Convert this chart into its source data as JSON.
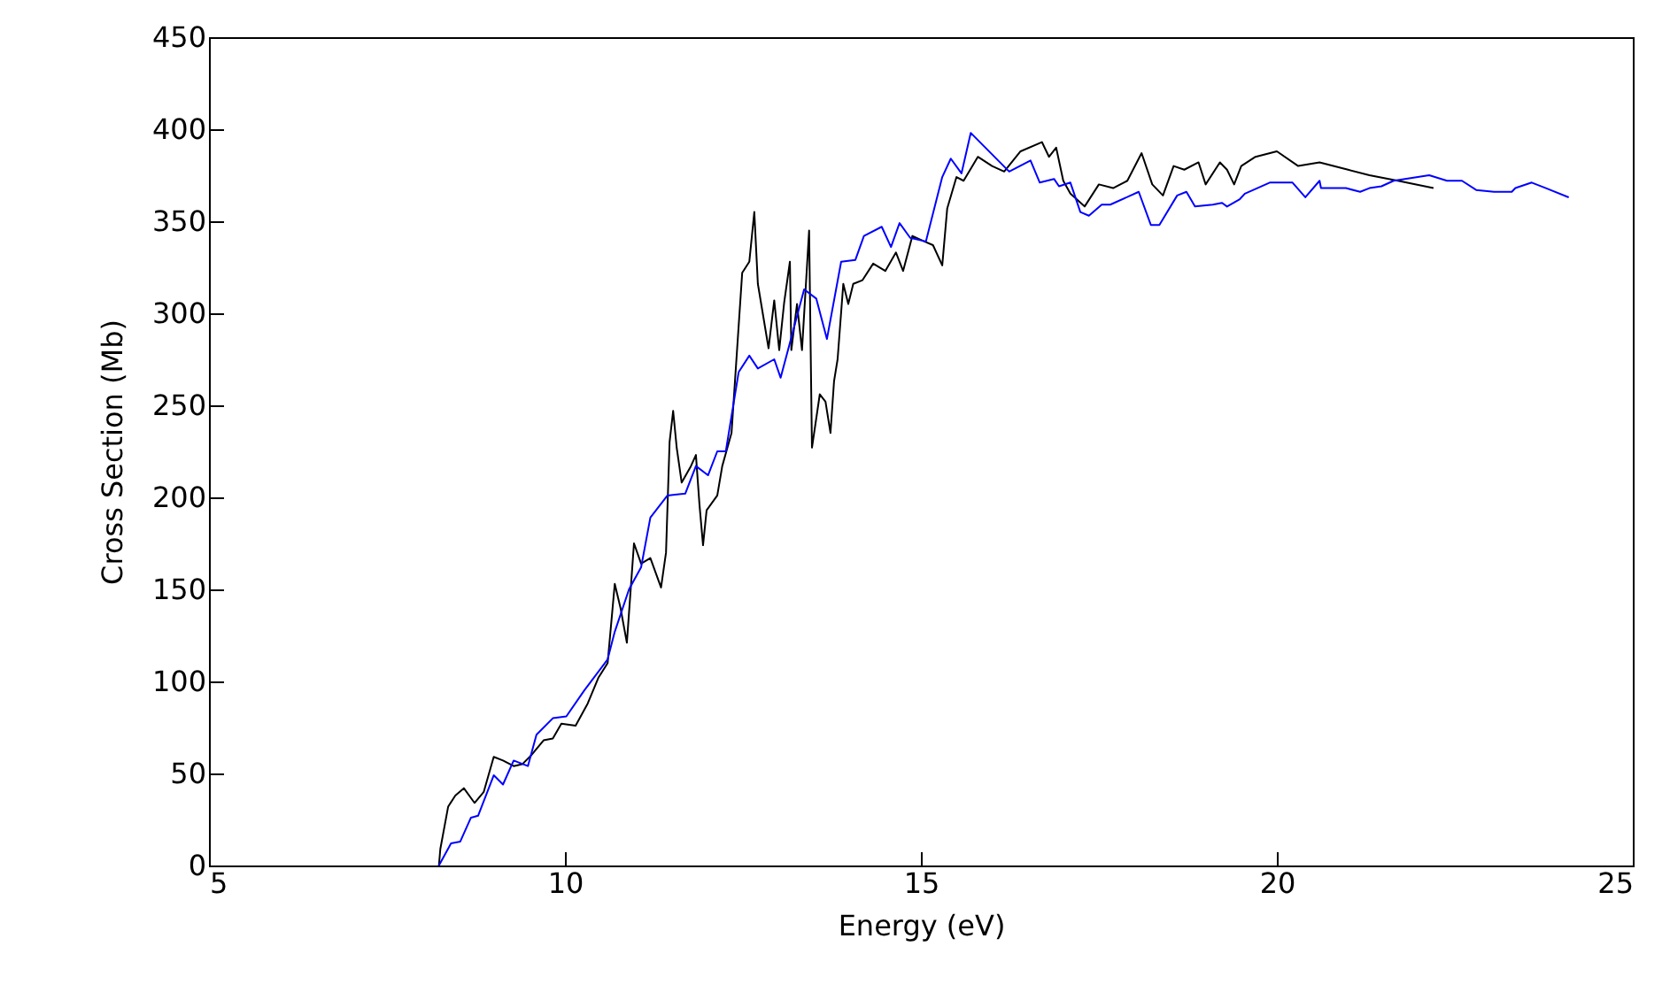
{
  "chart_data": {
    "type": "line",
    "xlabel": "Energy (eV)",
    "ylabel": "Cross Section (Mb)",
    "xlim": [
      5,
      25
    ],
    "ylim": [
      0,
      450
    ],
    "xticks": [
      5,
      10,
      15,
      20,
      25
    ],
    "yticks": [
      0,
      50,
      100,
      150,
      200,
      250,
      300,
      350,
      400,
      450
    ],
    "grid": false,
    "legend": false,
    "line_style": "solid",
    "marker": "none",
    "series": [
      {
        "color": "#000000",
        "x": [
          8.23,
          8.25,
          8.36,
          8.46,
          8.58,
          8.73,
          8.86,
          9.0,
          9.13,
          9.28,
          9.4,
          9.53,
          9.7,
          9.83,
          9.95,
          10.15,
          10.32,
          10.47,
          10.6,
          10.7,
          10.78,
          10.87,
          10.97,
          11.07,
          11.2,
          11.35,
          11.42,
          11.47,
          11.52,
          11.57,
          11.64,
          11.77,
          11.84,
          11.89,
          11.94,
          11.99,
          12.14,
          12.21,
          12.34,
          12.49,
          12.59,
          12.66,
          12.71,
          12.86,
          12.94,
          13.01,
          13.08,
          13.16,
          13.18,
          13.26,
          13.33,
          13.43,
          13.47,
          13.58,
          13.66,
          13.73,
          13.78,
          13.83,
          13.91,
          13.98,
          14.05,
          14.18,
          14.33,
          14.5,
          14.65,
          14.75,
          14.88,
          15.05,
          15.17,
          15.3,
          15.37,
          15.5,
          15.6,
          15.8,
          16.0,
          16.17,
          16.4,
          16.7,
          16.8,
          16.9,
          17.0,
          17.1,
          17.3,
          17.5,
          17.7,
          17.9,
          18.1,
          18.25,
          18.4,
          18.55,
          18.7,
          18.9,
          19.0,
          19.2,
          19.3,
          19.4,
          19.5,
          19.7,
          20.0,
          20.3,
          20.6,
          21.0,
          21.3,
          21.7,
          22.2
        ],
        "values": [
          0,
          9,
          32,
          38,
          42,
          34,
          40,
          59,
          57,
          54,
          55,
          60,
          68,
          69,
          77,
          76,
          88,
          102,
          110,
          153,
          140,
          121,
          175,
          164,
          167,
          151,
          170,
          230,
          247,
          227,
          208,
          217,
          223,
          196,
          174,
          193,
          201,
          217,
          235,
          322,
          328,
          355,
          316,
          281,
          307,
          280,
          306,
          328,
          280,
          305,
          280,
          345,
          227,
          256,
          252,
          235,
          263,
          275,
          316,
          305,
          316,
          318,
          327,
          323,
          333,
          323,
          342,
          339,
          337,
          326,
          357,
          374,
          372,
          385,
          380,
          377,
          388,
          393,
          385,
          390,
          372,
          365,
          358,
          370,
          368,
          372,
          387,
          370,
          364,
          380,
          378,
          382,
          370,
          382,
          378,
          370,
          380,
          385,
          388,
          380,
          382,
          378,
          375,
          372,
          368
        ]
      },
      {
        "color": "#0000ff",
        "x": [
          8.23,
          8.4,
          8.53,
          8.68,
          8.78,
          9.0,
          9.13,
          9.28,
          9.48,
          9.6,
          9.83,
          10.02,
          10.27,
          10.6,
          10.7,
          10.9,
          11.07,
          11.2,
          11.44,
          11.69,
          11.84,
          12.01,
          12.14,
          12.26,
          12.44,
          12.59,
          12.71,
          12.94,
          13.03,
          13.36,
          13.53,
          13.68,
          13.88,
          14.08,
          14.2,
          14.45,
          14.58,
          14.7,
          14.85,
          15.07,
          15.3,
          15.42,
          15.57,
          15.7,
          16.24,
          16.54,
          16.67,
          16.87,
          16.94,
          17.1,
          17.24,
          17.36,
          17.54,
          17.66,
          18.06,
          18.23,
          18.35,
          18.6,
          18.73,
          18.85,
          19.1,
          19.23,
          19.3,
          19.48,
          19.55,
          19.9,
          20.22,
          20.4,
          20.6,
          20.62,
          20.97,
          21.17,
          21.3,
          21.47,
          21.64,
          22.14,
          22.39,
          22.6,
          22.8,
          23.05,
          23.3,
          23.35,
          23.58,
          23.78,
          24.1
        ],
        "values": [
          0,
          12,
          13,
          26,
          27,
          49,
          44,
          57,
          54,
          71,
          80,
          81,
          95,
          112,
          127,
          150,
          162,
          189,
          201,
          202,
          217,
          212,
          225,
          225,
          268,
          277,
          270,
          275,
          265,
          313,
          308,
          286,
          328,
          329,
          342,
          347,
          336,
          349,
          341,
          339,
          374,
          384,
          376,
          398,
          377,
          383,
          371,
          373,
          369,
          371,
          355,
          353,
          359,
          359,
          366,
          348,
          348,
          364,
          366,
          358,
          359,
          360,
          358,
          362,
          365,
          371,
          371,
          363,
          372,
          368,
          368,
          366,
          368,
          369,
          372,
          375,
          372,
          372,
          367,
          366,
          366,
          368,
          371,
          368,
          363
        ]
      }
    ]
  }
}
